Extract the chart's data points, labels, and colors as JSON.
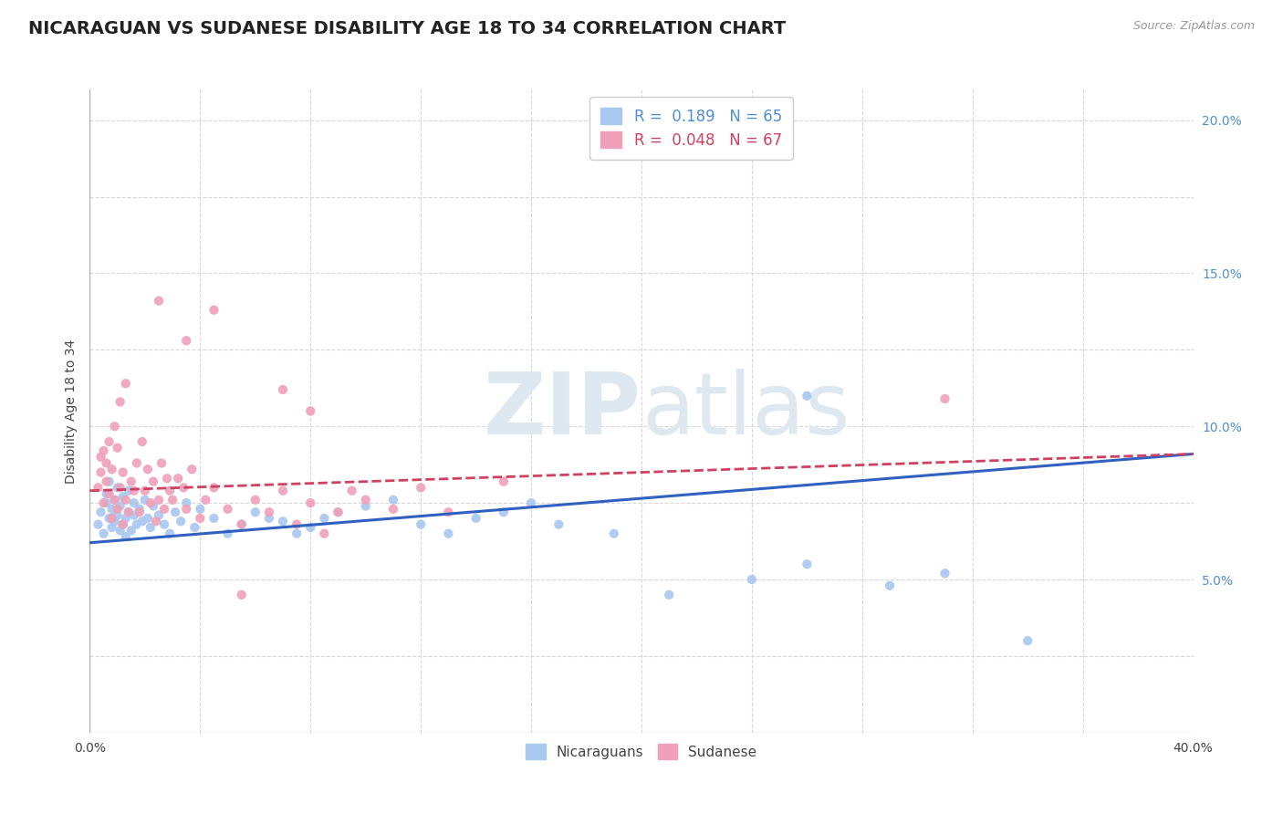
{
  "title": "NICARAGUAN VS SUDANESE DISABILITY AGE 18 TO 34 CORRELATION CHART",
  "source_text": "Source: ZipAtlas.com",
  "ylabel": "Disability Age 18 to 34",
  "xlim": [
    0.0,
    0.4
  ],
  "ylim": [
    0.0,
    0.21
  ],
  "nicaraguan_color": "#a8c8f0",
  "sudanese_color": "#f0a0b8",
  "trend_nicaraguan_color": "#3060c0",
  "trend_sudanese_color": "#d04060",
  "background_color": "#ffffff",
  "grid_color": "#d8d8d8",
  "title_fontsize": 14,
  "watermark_zip": "ZIP",
  "watermark_atlas": "atlas",
  "nicaraguan_R": 0.189,
  "nicaraguan_N": 65,
  "sudanese_R": 0.048,
  "sudanese_N": 67,
  "nic_trend_x0": 0.0,
  "nic_trend_y0": 0.062,
  "nic_trend_x1": 0.4,
  "nic_trend_y1": 0.091,
  "sud_trend_x0": 0.0,
  "sud_trend_y0": 0.079,
  "sud_trend_x1": 0.4,
  "sud_trend_y1": 0.091,
  "nicaraguan_x": [
    0.003,
    0.004,
    0.005,
    0.006,
    0.006,
    0.007,
    0.007,
    0.008,
    0.008,
    0.009,
    0.009,
    0.01,
    0.01,
    0.011,
    0.011,
    0.012,
    0.012,
    0.013,
    0.013,
    0.014,
    0.014,
    0.015,
    0.016,
    0.016,
    0.017,
    0.018,
    0.019,
    0.02,
    0.021,
    0.022,
    0.023,
    0.025,
    0.027,
    0.029,
    0.031,
    0.033,
    0.035,
    0.038,
    0.04,
    0.045,
    0.05,
    0.055,
    0.06,
    0.065,
    0.07,
    0.075,
    0.08,
    0.085,
    0.09,
    0.1,
    0.11,
    0.12,
    0.13,
    0.14,
    0.15,
    0.16,
    0.17,
    0.19,
    0.21,
    0.24,
    0.26,
    0.29,
    0.31,
    0.26,
    0.34
  ],
  "nicaraguan_y": [
    0.068,
    0.072,
    0.065,
    0.075,
    0.078,
    0.07,
    0.082,
    0.067,
    0.073,
    0.069,
    0.076,
    0.071,
    0.08,
    0.066,
    0.074,
    0.068,
    0.077,
    0.07,
    0.064,
    0.072,
    0.079,
    0.066,
    0.071,
    0.075,
    0.068,
    0.073,
    0.069,
    0.076,
    0.07,
    0.067,
    0.074,
    0.071,
    0.068,
    0.065,
    0.072,
    0.069,
    0.075,
    0.067,
    0.073,
    0.07,
    0.065,
    0.068,
    0.072,
    0.07,
    0.069,
    0.065,
    0.067,
    0.07,
    0.072,
    0.074,
    0.076,
    0.068,
    0.065,
    0.07,
    0.072,
    0.075,
    0.068,
    0.065,
    0.045,
    0.05,
    0.055,
    0.048,
    0.052,
    0.11,
    0.03
  ],
  "sudanese_x": [
    0.003,
    0.004,
    0.004,
    0.005,
    0.005,
    0.006,
    0.006,
    0.007,
    0.007,
    0.008,
    0.008,
    0.009,
    0.009,
    0.01,
    0.01,
    0.011,
    0.011,
    0.012,
    0.012,
    0.013,
    0.013,
    0.014,
    0.015,
    0.016,
    0.017,
    0.018,
    0.019,
    0.02,
    0.021,
    0.022,
    0.023,
    0.024,
    0.025,
    0.026,
    0.027,
    0.028,
    0.029,
    0.03,
    0.032,
    0.034,
    0.035,
    0.037,
    0.04,
    0.042,
    0.045,
    0.05,
    0.055,
    0.06,
    0.065,
    0.07,
    0.075,
    0.08,
    0.085,
    0.09,
    0.095,
    0.1,
    0.11,
    0.12,
    0.13,
    0.15,
    0.07,
    0.08,
    0.025,
    0.035,
    0.045,
    0.31,
    0.055
  ],
  "sudanese_y": [
    0.08,
    0.085,
    0.09,
    0.075,
    0.092,
    0.082,
    0.088,
    0.078,
    0.095,
    0.07,
    0.086,
    0.076,
    0.1,
    0.073,
    0.093,
    0.08,
    0.108,
    0.085,
    0.068,
    0.076,
    0.114,
    0.072,
    0.082,
    0.079,
    0.088,
    0.072,
    0.095,
    0.079,
    0.086,
    0.075,
    0.082,
    0.069,
    0.076,
    0.088,
    0.073,
    0.083,
    0.079,
    0.076,
    0.083,
    0.08,
    0.073,
    0.086,
    0.07,
    0.076,
    0.08,
    0.073,
    0.068,
    0.076,
    0.072,
    0.079,
    0.068,
    0.075,
    0.065,
    0.072,
    0.079,
    0.076,
    0.073,
    0.08,
    0.072,
    0.082,
    0.112,
    0.105,
    0.141,
    0.128,
    0.138,
    0.109,
    0.045
  ]
}
